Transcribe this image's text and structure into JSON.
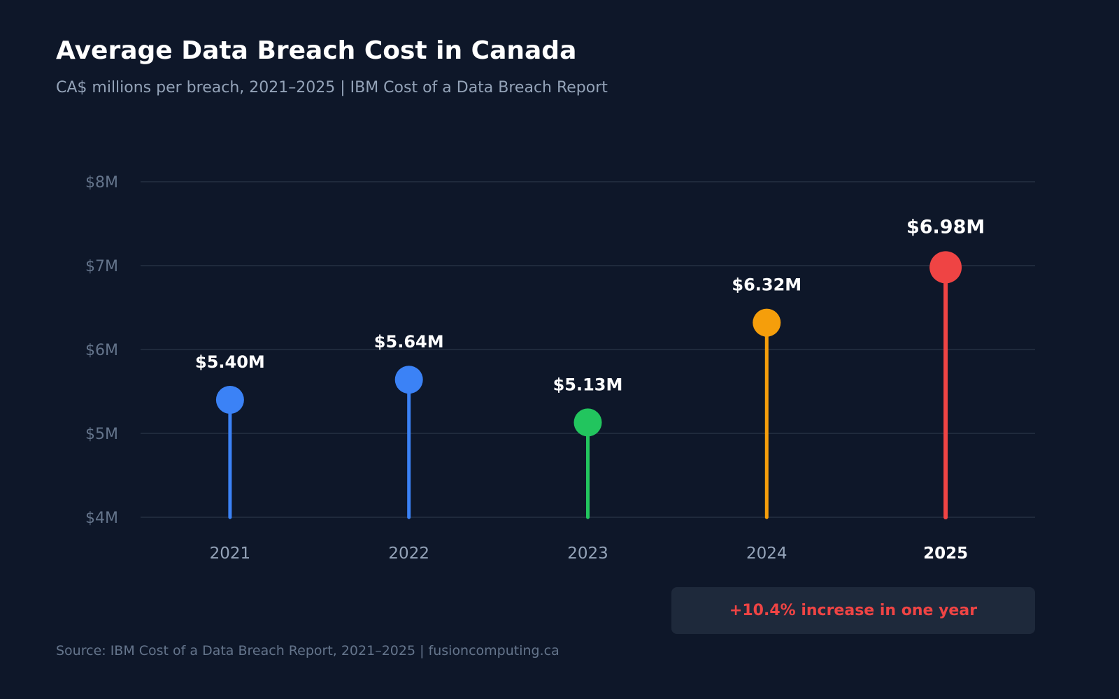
{
  "title": "Average Data Breach Cost in Canada",
  "subtitle": "CA$ millions per breach, 2021–2025 | IBM Cost of a Data Breach Report",
  "callout": "+10.4% increase in one year",
  "source": "Source: IBM Cost of a Data Breach Report, 2021–2025 | fusioncomputing.ca",
  "chart_data": {
    "type": "lollipop",
    "categories": [
      "2021",
      "2022",
      "2023",
      "2024",
      "2025"
    ],
    "values": [
      5.4,
      5.64,
      5.13,
      6.32,
      6.98
    ],
    "data_labels": [
      "$5.40M",
      "$5.64M",
      "$5.13M",
      "$6.32M",
      "$6.98M"
    ],
    "colors": [
      "#3b82f6",
      "#3b82f6",
      "#22c55e",
      "#f59e0b",
      "#ef4444"
    ],
    "highlight_category": "2025",
    "ylim": [
      4,
      8
    ],
    "yticks": [
      4,
      5,
      6,
      7,
      8
    ],
    "ytick_labels": [
      "$4M",
      "$5M",
      "$6M",
      "$7M",
      "$8M"
    ],
    "grid": true,
    "xlabel": "",
    "ylabel": ""
  }
}
